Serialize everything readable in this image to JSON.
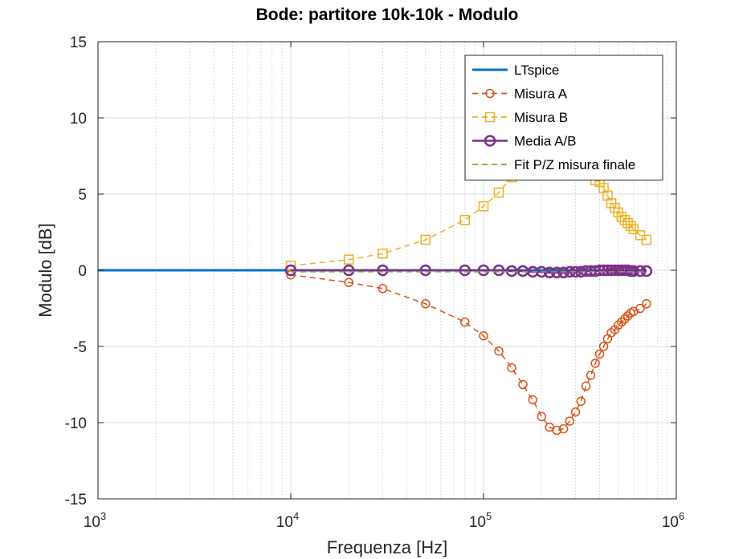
{
  "chart_data": {
    "type": "line",
    "title": "Bode: partitore 10k-10k - Modulo",
    "xlabel": "Frequenza [Hz]",
    "ylabel": "Modulo [dB]",
    "xscale": "log",
    "xlim": [
      1000,
      1000000
    ],
    "ylim": [
      -15,
      15
    ],
    "xticks": [
      1000,
      10000,
      100000,
      1000000
    ],
    "xtick_labels": [
      {
        "base": "10",
        "exp": "3"
      },
      {
        "base": "10",
        "exp": "4"
      },
      {
        "base": "10",
        "exp": "5"
      },
      {
        "base": "10",
        "exp": "6"
      }
    ],
    "yticks": [
      -15,
      -10,
      -5,
      0,
      5,
      10,
      15
    ],
    "ytick_labels": [
      "-15",
      "-10",
      "-5",
      "0",
      "5",
      "10",
      "15"
    ],
    "grid": true,
    "legend_position": "top-right",
    "series": [
      {
        "name": "LTspice",
        "color": "#0072BD",
        "style": "solid",
        "marker": "none",
        "x": [
          1000,
          700000
        ],
        "y": [
          0,
          0
        ]
      },
      {
        "name": "Misura A",
        "color": "#D95319",
        "style": "dashed",
        "marker": "circle",
        "x": [
          10000,
          20000,
          30000,
          50000,
          80000,
          100000,
          120000,
          140000,
          160000,
          180000,
          200000,
          220000,
          240000,
          260000,
          280000,
          300000,
          320000,
          340000,
          360000,
          380000,
          400000,
          420000,
          440000,
          460000,
          480000,
          500000,
          520000,
          540000,
          560000,
          580000,
          600000,
          650000,
          700000
        ],
        "y": [
          -0.3,
          -0.8,
          -1.2,
          -2.2,
          -3.4,
          -4.3,
          -5.3,
          -6.4,
          -7.5,
          -8.5,
          -9.6,
          -10.3,
          -10.5,
          -10.4,
          -9.9,
          -9.3,
          -8.6,
          -7.6,
          -6.9,
          -6.1,
          -5.5,
          -5.0,
          -4.5,
          -4.1,
          -3.9,
          -3.6,
          -3.4,
          -3.2,
          -3.0,
          -2.8,
          -2.7,
          -2.5,
          -2.2
        ]
      },
      {
        "name": "Misura B",
        "color": "#EDB120",
        "style": "dashed",
        "marker": "square",
        "x": [
          10000,
          20000,
          30000,
          50000,
          80000,
          100000,
          120000,
          140000,
          160000,
          180000,
          200000,
          220000,
          240000,
          260000,
          280000,
          300000,
          320000,
          340000,
          360000,
          380000,
          400000,
          420000,
          440000,
          460000,
          480000,
          500000,
          520000,
          540000,
          560000,
          580000,
          600000,
          650000,
          700000
        ],
        "y": [
          0.3,
          0.7,
          1.1,
          2.0,
          3.3,
          4.2,
          5.1,
          6.1,
          7.2,
          8.2,
          9.3,
          10.0,
          10.3,
          10.2,
          9.7,
          9.0,
          8.3,
          7.4,
          6.6,
          5.9,
          5.8,
          5.4,
          4.9,
          4.4,
          4.1,
          3.8,
          3.5,
          3.3,
          3.1,
          2.9,
          2.7,
          2.3,
          2.0
        ]
      },
      {
        "name": "Media A/B",
        "color": "#7E2F8E",
        "style": "solid",
        "marker": "circle",
        "x": [
          10000,
          20000,
          30000,
          50000,
          80000,
          100000,
          120000,
          140000,
          160000,
          180000,
          200000,
          220000,
          240000,
          260000,
          280000,
          300000,
          320000,
          340000,
          360000,
          380000,
          400000,
          420000,
          440000,
          460000,
          480000,
          500000,
          520000,
          540000,
          560000,
          580000,
          600000,
          650000,
          700000
        ],
        "y": [
          0,
          0,
          0,
          0,
          0,
          0,
          0,
          -0.05,
          -0.05,
          -0.1,
          -0.1,
          -0.15,
          -0.15,
          -0.15,
          -0.1,
          -0.1,
          -0.1,
          -0.05,
          -0.05,
          -0.05,
          0,
          0,
          0,
          0,
          0,
          0,
          0,
          0,
          0,
          -0.05,
          -0.05,
          -0.05,
          -0.05
        ]
      },
      {
        "name": "Fit P/Z misura finale",
        "color": "#77AC30",
        "style": "dashed",
        "marker": "none",
        "x": [
          10000,
          700000
        ],
        "y": [
          -0.1,
          -0.1
        ]
      }
    ]
  }
}
